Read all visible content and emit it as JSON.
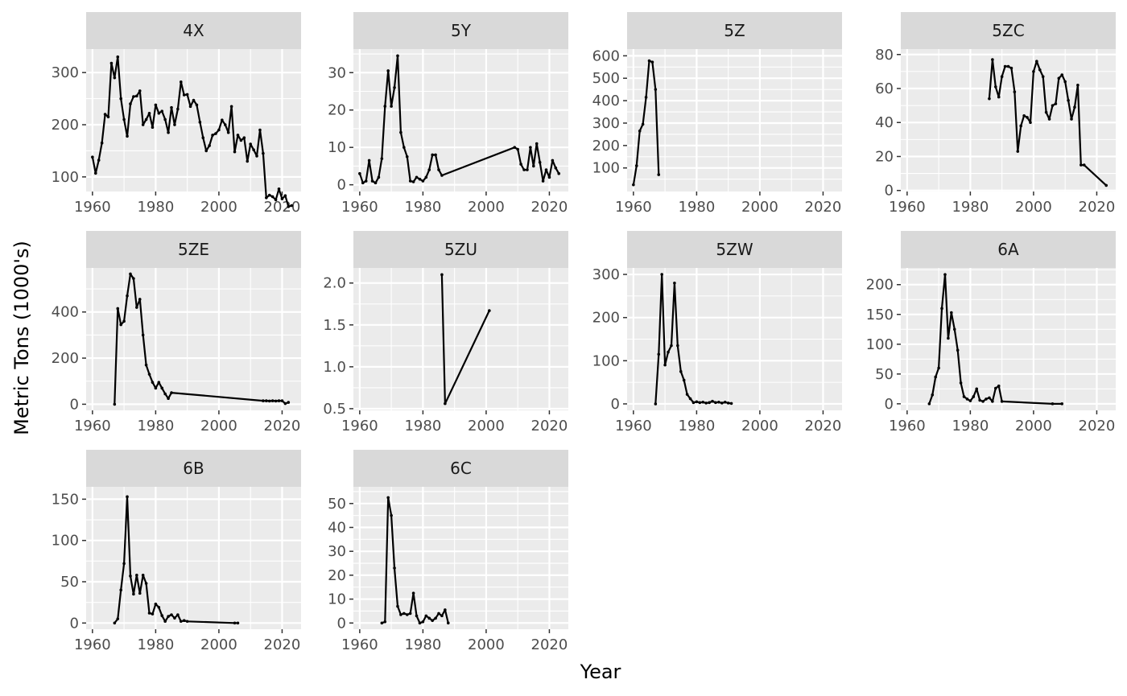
{
  "chart_data": {
    "type": "line",
    "layout": "facets 4 columns x 3 rows",
    "xlabel": "Year",
    "ylabel": "Metric Tons (1000's)",
    "xlim": [
      1958,
      2026
    ],
    "x_ticks": [
      1960,
      1980,
      2000,
      2020
    ],
    "grid": true,
    "colors": {
      "panel_bg": "#ebebeb",
      "strip_bg": "#d9d9d9",
      "grid": "#ffffff",
      "line": "#000000",
      "tick_text": "#4d4d4d"
    },
    "panels": [
      {
        "label": "4X",
        "ylim": [
          72,
          345
        ],
        "y_ticks": [
          100,
          200,
          300
        ],
        "x": [
          1960,
          1961,
          1962,
          1963,
          1964,
          1965,
          1966,
          1967,
          1968,
          1969,
          1970,
          1971,
          1972,
          1973,
          1974,
          1975,
          1976,
          1977,
          1978,
          1979,
          1980,
          1981,
          1982,
          1983,
          1984,
          1985,
          1986,
          1987,
          1988,
          1989,
          1990,
          1991,
          1992,
          1993,
          1994,
          1995,
          1996,
          1997,
          1998,
          1999,
          2000,
          2001,
          2002,
          2003,
          2004,
          2005,
          2006,
          2007,
          2008,
          2009,
          2010,
          2011,
          2012,
          2013,
          2014,
          2015,
          2016,
          2017,
          2018,
          2019,
          2020,
          2021,
          2022,
          2023
        ],
        "y": [
          138,
          107,
          132,
          165,
          220,
          215,
          318,
          290,
          330,
          250,
          210,
          178,
          240,
          254,
          255,
          265,
          200,
          210,
          222,
          195,
          238,
          222,
          226,
          210,
          185,
          233,
          200,
          230,
          282,
          257,
          258,
          235,
          247,
          238,
          205,
          175,
          150,
          160,
          180,
          183,
          190,
          209,
          200,
          185,
          235,
          148,
          180,
          170,
          175,
          130,
          163,
          152,
          140,
          190,
          145,
          60,
          65,
          62,
          56,
          77,
          58,
          64,
          43,
          45
        ]
      },
      {
        "label": "5Y",
        "ylim": [
          -1.8,
          36.3
        ],
        "y_ticks": [
          0,
          10,
          20,
          30
        ],
        "x": [
          1960,
          1961,
          1962,
          1963,
          1964,
          1965,
          1966,
          1967,
          1968,
          1969,
          1970,
          1971,
          1972,
          1973,
          1974,
          1975,
          1976,
          1977,
          1978,
          1979,
          1980,
          1981,
          1982,
          1983,
          1984,
          1985,
          1986,
          2009,
          2010,
          2011,
          2012,
          2013,
          2014,
          2015,
          2016,
          2017,
          2018,
          2019,
          2020,
          2021,
          2022,
          2023
        ],
        "y": [
          3,
          0.5,
          1,
          6.5,
          1,
          0.5,
          2,
          7,
          21,
          30.5,
          21,
          26,
          34.5,
          14,
          10,
          7.5,
          1,
          0.8,
          2,
          1.5,
          1,
          2,
          4,
          8,
          8,
          4,
          2.5,
          10,
          9.5,
          5.5,
          4,
          4,
          10,
          5,
          11,
          6,
          1,
          4,
          2,
          6.5,
          4.5,
          3
        ]
      },
      {
        "label": "5Z",
        "ylim": [
          -5,
          630
        ],
        "y_ticks": [
          100,
          200,
          300,
          400,
          500,
          600
        ],
        "x": [
          1960,
          1961,
          1962,
          1963,
          1964,
          1965,
          1966,
          1967,
          1968
        ],
        "y": [
          25,
          110,
          265,
          295,
          415,
          578,
          572,
          450,
          70
        ]
      },
      {
        "label": "5ZC",
        "ylim": [
          -0.6,
          83.2
        ],
        "y_ticks": [
          0,
          20,
          40,
          60,
          80
        ],
        "x": [
          1986,
          1987,
          1988,
          1989,
          1990,
          1991,
          1992,
          1993,
          1994,
          1995,
          1996,
          1997,
          1998,
          1999,
          2000,
          2001,
          2002,
          2003,
          2004,
          2005,
          2006,
          2007,
          2008,
          2009,
          2010,
          2011,
          2012,
          2013,
          2014,
          2015,
          2016,
          2023
        ],
        "y": [
          54,
          77,
          61,
          55,
          67,
          73,
          73,
          72,
          58,
          23,
          38,
          44,
          43,
          40,
          70,
          76,
          71,
          67,
          46,
          42,
          50,
          51,
          66,
          68,
          64,
          53,
          42,
          49,
          62,
          15,
          15,
          3
        ]
      },
      {
        "label": "5ZE",
        "ylim": [
          -26.5,
          591
        ],
        "y_ticks": [
          0,
          200,
          400
        ],
        "x": [
          1967,
          1968,
          1969,
          1970,
          1971,
          1972,
          1973,
          1974,
          1975,
          1976,
          1977,
          1978,
          1979,
          1980,
          1981,
          1982,
          1983,
          1984,
          1985,
          2014,
          2015,
          2016,
          2017,
          2018,
          2019,
          2020,
          2021,
          2022
        ],
        "y": [
          0,
          415,
          345,
          360,
          470,
          565,
          545,
          420,
          455,
          300,
          170,
          130,
          95,
          70,
          95,
          70,
          45,
          25,
          50,
          15,
          15,
          14,
          15,
          14,
          15,
          15,
          3,
          8
        ]
      },
      {
        "label": "5ZU",
        "ylim": [
          0.48,
          2.18
        ],
        "y_ticks": [
          0.5,
          1.0,
          1.5,
          2.0
        ],
        "x": [
          1986,
          1987,
          2001
        ],
        "y": [
          2.1,
          0.56,
          1.67
        ]
      },
      {
        "label": "5ZW",
        "ylim": [
          -15,
          315
        ],
        "y_ticks": [
          0,
          100,
          200,
          300
        ],
        "x": [
          1967,
          1968,
          1969,
          1970,
          1971,
          1972,
          1973,
          1974,
          1975,
          1976,
          1977,
          1978,
          1979,
          1980,
          1981,
          1982,
          1983,
          1984,
          1985,
          1986,
          1987,
          1988,
          1989,
          1990,
          1991
        ],
        "y": [
          0,
          115,
          300,
          90,
          120,
          135,
          280,
          135,
          75,
          55,
          22,
          12,
          3,
          5,
          3,
          4,
          2,
          3,
          6,
          3,
          4,
          2,
          4,
          2,
          1
        ]
      },
      {
        "label": "6A",
        "ylim": [
          -11,
          228
        ],
        "y_ticks": [
          0,
          50,
          100,
          150,
          200
        ],
        "x": [
          1967,
          1968,
          1969,
          1970,
          1971,
          1972,
          1973,
          1974,
          1975,
          1976,
          1977,
          1978,
          1979,
          1980,
          1981,
          1982,
          1983,
          1984,
          1985,
          1986,
          1987,
          1988,
          1989,
          1990,
          2006,
          2009
        ],
        "y": [
          0,
          15,
          45,
          60,
          160,
          217,
          110,
          153,
          125,
          90,
          35,
          12,
          8,
          5,
          12,
          25,
          6,
          4,
          8,
          10,
          4,
          26,
          30,
          4,
          0,
          0
        ]
      },
      {
        "label": "6B",
        "ylim": [
          -7.5,
          165
        ],
        "y_ticks": [
          0,
          50,
          100,
          150
        ],
        "x": [
          1967,
          1968,
          1969,
          1970,
          1971,
          1972,
          1973,
          1974,
          1975,
          1976,
          1977,
          1978,
          1979,
          1980,
          1981,
          1982,
          1983,
          1984,
          1985,
          1986,
          1987,
          1988,
          1989,
          1990,
          2005,
          2006
        ],
        "y": [
          0,
          5,
          40,
          72,
          153,
          57,
          35,
          58,
          36,
          58,
          48,
          12,
          11,
          23,
          19,
          9,
          2,
          8,
          10,
          6,
          10,
          2,
          3,
          2,
          0,
          0
        ]
      },
      {
        "label": "6C",
        "ylim": [
          -2.6,
          57
        ],
        "y_ticks": [
          0,
          10,
          20,
          30,
          40,
          50
        ],
        "x": [
          1967,
          1968,
          1969,
          1970,
          1971,
          1972,
          1973,
          1974,
          1975,
          1976,
          1977,
          1978,
          1979,
          1980,
          1981,
          1982,
          1983,
          1984,
          1985,
          1986,
          1987,
          1988
        ],
        "y": [
          0,
          0.5,
          52.5,
          45,
          23,
          7,
          3.5,
          4,
          3.5,
          4,
          12.5,
          3,
          0,
          0.5,
          3,
          2,
          1,
          2,
          4,
          3,
          5.5,
          0
        ]
      }
    ]
  }
}
